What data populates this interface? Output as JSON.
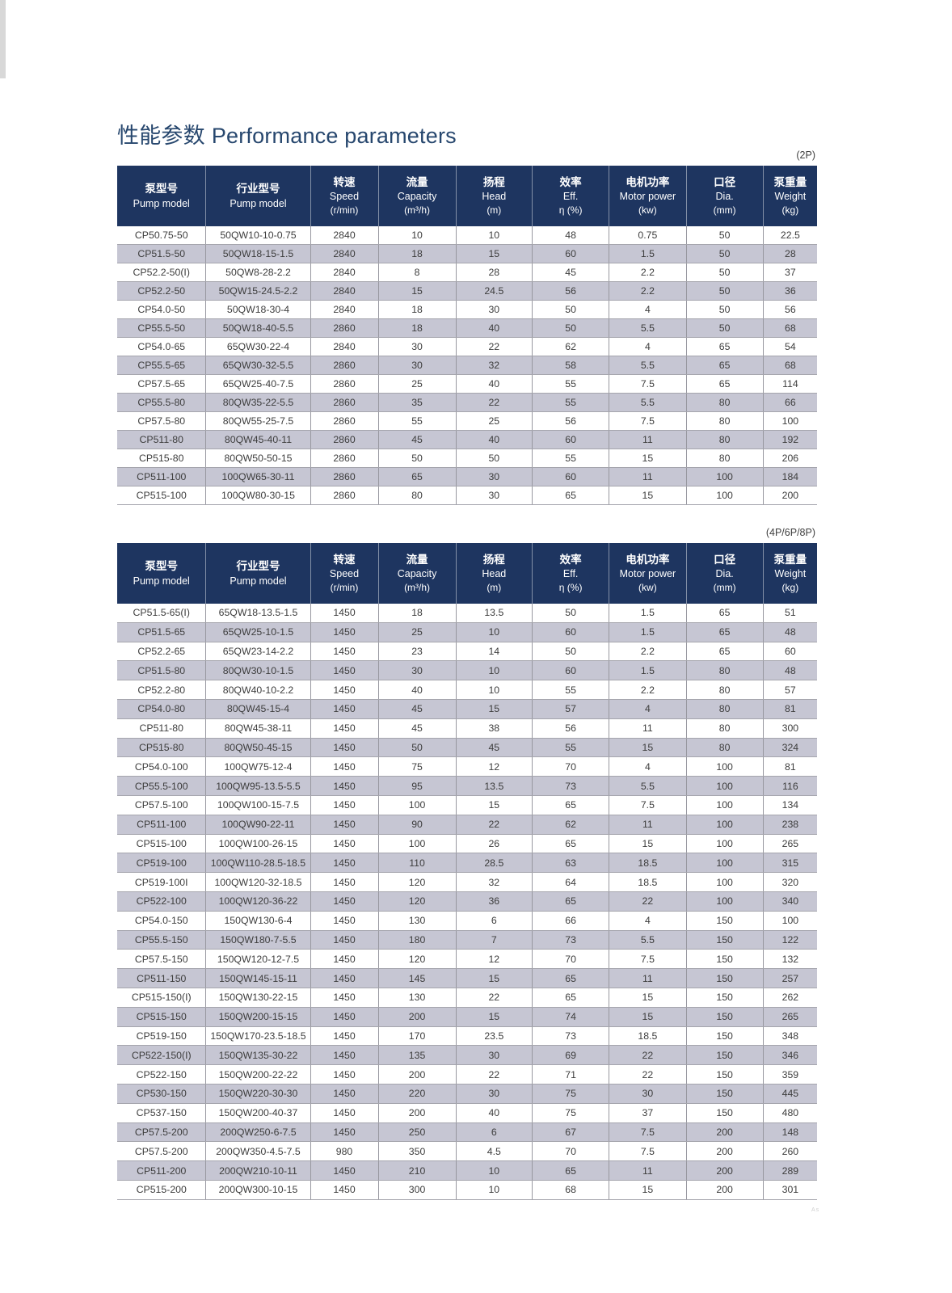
{
  "page": {
    "title_zh": "性能参数",
    "title_en": "Performance parameters",
    "corner_mark": "As"
  },
  "colors": {
    "header_bg": "#1e3560",
    "stripe": "#c6c6d3",
    "title": "#27476e"
  },
  "columns": [
    {
      "key": "pump-model",
      "zh": "泵型号",
      "en": "Pump model",
      "unit": ""
    },
    {
      "key": "industry-model",
      "zh": "行业型号",
      "en": "Pump model",
      "unit": ""
    },
    {
      "key": "speed",
      "zh": "转速",
      "en": "Speed",
      "unit": "(r/min)"
    },
    {
      "key": "capacity",
      "zh": "流量",
      "en": "Capacity",
      "unit": "(m³/h)"
    },
    {
      "key": "head",
      "zh": "扬程",
      "en": "Head",
      "unit": "(m)"
    },
    {
      "key": "eff",
      "zh": "效率",
      "en": "Eff.",
      "unit": "η (%)"
    },
    {
      "key": "motor-power",
      "zh": "电机功率",
      "en": "Motor power",
      "unit": "(kw)"
    },
    {
      "key": "dia",
      "zh": "口径",
      "en": "Dia.",
      "unit": "(mm)"
    },
    {
      "key": "weight",
      "zh": "泵重量",
      "en": "Weight",
      "unit": "(kg)"
    }
  ],
  "tables": [
    {
      "tag": "(2P)",
      "rows": [
        [
          "CP50.75-50",
          "50QW10-10-0.75",
          "2840",
          "10",
          "10",
          "48",
          "0.75",
          "50",
          "22.5"
        ],
        [
          "CP51.5-50",
          "50QW18-15-1.5",
          "2840",
          "18",
          "15",
          "60",
          "1.5",
          "50",
          "28"
        ],
        [
          "CP52.2-50(I)",
          "50QW8-28-2.2",
          "2840",
          "8",
          "28",
          "45",
          "2.2",
          "50",
          "37"
        ],
        [
          "CP52.2-50",
          "50QW15-24.5-2.2",
          "2840",
          "15",
          "24.5",
          "56",
          "2.2",
          "50",
          "36"
        ],
        [
          "CP54.0-50",
          "50QW18-30-4",
          "2840",
          "18",
          "30",
          "50",
          "4",
          "50",
          "56"
        ],
        [
          "CP55.5-50",
          "50QW18-40-5.5",
          "2860",
          "18",
          "40",
          "50",
          "5.5",
          "50",
          "68"
        ],
        [
          "CP54.0-65",
          "65QW30-22-4",
          "2840",
          "30",
          "22",
          "62",
          "4",
          "65",
          "54"
        ],
        [
          "CP55.5-65",
          "65QW30-32-5.5",
          "2860",
          "30",
          "32",
          "58",
          "5.5",
          "65",
          "68"
        ],
        [
          "CP57.5-65",
          "65QW25-40-7.5",
          "2860",
          "25",
          "40",
          "55",
          "7.5",
          "65",
          "114"
        ],
        [
          "CP55.5-80",
          "80QW35-22-5.5",
          "2860",
          "35",
          "22",
          "55",
          "5.5",
          "80",
          "66"
        ],
        [
          "CP57.5-80",
          "80QW55-25-7.5",
          "2860",
          "55",
          "25",
          "56",
          "7.5",
          "80",
          "100"
        ],
        [
          "CP511-80",
          "80QW45-40-11",
          "2860",
          "45",
          "40",
          "60",
          "11",
          "80",
          "192"
        ],
        [
          "CP515-80",
          "80QW50-50-15",
          "2860",
          "50",
          "50",
          "55",
          "15",
          "80",
          "206"
        ],
        [
          "CP511-100",
          "100QW65-30-11",
          "2860",
          "65",
          "30",
          "60",
          "11",
          "100",
          "184"
        ],
        [
          "CP515-100",
          "100QW80-30-15",
          "2860",
          "80",
          "30",
          "65",
          "15",
          "100",
          "200"
        ]
      ]
    },
    {
      "tag": "(4P/6P/8P)",
      "rows": [
        [
          "CP51.5-65(I)",
          "65QW18-13.5-1.5",
          "1450",
          "18",
          "13.5",
          "50",
          "1.5",
          "65",
          "51"
        ],
        [
          "CP51.5-65",
          "65QW25-10-1.5",
          "1450",
          "25",
          "10",
          "60",
          "1.5",
          "65",
          "48"
        ],
        [
          "CP52.2-65",
          "65QW23-14-2.2",
          "1450",
          "23",
          "14",
          "50",
          "2.2",
          "65",
          "60"
        ],
        [
          "CP51.5-80",
          "80QW30-10-1.5",
          "1450",
          "30",
          "10",
          "60",
          "1.5",
          "80",
          "48"
        ],
        [
          "CP52.2-80",
          "80QW40-10-2.2",
          "1450",
          "40",
          "10",
          "55",
          "2.2",
          "80",
          "57"
        ],
        [
          "CP54.0-80",
          "80QW45-15-4",
          "1450",
          "45",
          "15",
          "57",
          "4",
          "80",
          "81"
        ],
        [
          "CP511-80",
          "80QW45-38-11",
          "1450",
          "45",
          "38",
          "56",
          "11",
          "80",
          "300"
        ],
        [
          "CP515-80",
          "80QW50-45-15",
          "1450",
          "50",
          "45",
          "55",
          "15",
          "80",
          "324"
        ],
        [
          "CP54.0-100",
          "100QW75-12-4",
          "1450",
          "75",
          "12",
          "70",
          "4",
          "100",
          "81"
        ],
        [
          "CP55.5-100",
          "100QW95-13.5-5.5",
          "1450",
          "95",
          "13.5",
          "73",
          "5.5",
          "100",
          "116"
        ],
        [
          "CP57.5-100",
          "100QW100-15-7.5",
          "1450",
          "100",
          "15",
          "65",
          "7.5",
          "100",
          "134"
        ],
        [
          "CP511-100",
          "100QW90-22-11",
          "1450",
          "90",
          "22",
          "62",
          "11",
          "100",
          "238"
        ],
        [
          "CP515-100",
          "100QW100-26-15",
          "1450",
          "100",
          "26",
          "65",
          "15",
          "100",
          "265"
        ],
        [
          "CP519-100",
          "100QW110-28.5-18.5",
          "1450",
          "110",
          "28.5",
          "63",
          "18.5",
          "100",
          "315"
        ],
        [
          "CP519-100I",
          "100QW120-32-18.5",
          "1450",
          "120",
          "32",
          "64",
          "18.5",
          "100",
          "320"
        ],
        [
          "CP522-100",
          "100QW120-36-22",
          "1450",
          "120",
          "36",
          "65",
          "22",
          "100",
          "340"
        ],
        [
          "CP54.0-150",
          "150QW130-6-4",
          "1450",
          "130",
          "6",
          "66",
          "4",
          "150",
          "100"
        ],
        [
          "CP55.5-150",
          "150QW180-7-5.5",
          "1450",
          "180",
          "7",
          "73",
          "5.5",
          "150",
          "122"
        ],
        [
          "CP57.5-150",
          "150QW120-12-7.5",
          "1450",
          "120",
          "12",
          "70",
          "7.5",
          "150",
          "132"
        ],
        [
          "CP511-150",
          "150QW145-15-11",
          "1450",
          "145",
          "15",
          "65",
          "11",
          "150",
          "257"
        ],
        [
          "CP515-150(I)",
          "150QW130-22-15",
          "1450",
          "130",
          "22",
          "65",
          "15",
          "150",
          "262"
        ],
        [
          "CP515-150",
          "150QW200-15-15",
          "1450",
          "200",
          "15",
          "74",
          "15",
          "150",
          "265"
        ],
        [
          "CP519-150",
          "150QW170-23.5-18.5",
          "1450",
          "170",
          "23.5",
          "73",
          "18.5",
          "150",
          "348"
        ],
        [
          "CP522-150(I)",
          "150QW135-30-22",
          "1450",
          "135",
          "30",
          "69",
          "22",
          "150",
          "346"
        ],
        [
          "CP522-150",
          "150QW200-22-22",
          "1450",
          "200",
          "22",
          "71",
          "22",
          "150",
          "359"
        ],
        [
          "CP530-150",
          "150QW220-30-30",
          "1450",
          "220",
          "30",
          "75",
          "30",
          "150",
          "445"
        ],
        [
          "CP537-150",
          "150QW200-40-37",
          "1450",
          "200",
          "40",
          "75",
          "37",
          "150",
          "480"
        ],
        [
          "CP57.5-200",
          "200QW250-6-7.5",
          "1450",
          "250",
          "6",
          "67",
          "7.5",
          "200",
          "148"
        ],
        [
          "CP57.5-200",
          "200QW350-4.5-7.5",
          "980",
          "350",
          "4.5",
          "70",
          "7.5",
          "200",
          "260"
        ],
        [
          "CP511-200",
          "200QW210-10-11",
          "1450",
          "210",
          "10",
          "65",
          "11",
          "200",
          "289"
        ],
        [
          "CP515-200",
          "200QW300-10-15",
          "1450",
          "300",
          "10",
          "68",
          "15",
          "200",
          "301"
        ]
      ]
    }
  ]
}
